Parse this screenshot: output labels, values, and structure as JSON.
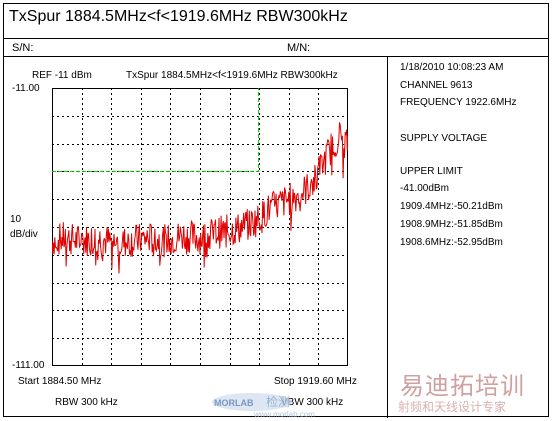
{
  "title": "TxSpur  1884.5MHz<f<1919.6MHz  RBW300kHz",
  "fields": {
    "sn_label": "S/N:",
    "mn_label": "M/N:"
  },
  "graph": {
    "ref_text": "REF  -11  dBm",
    "span_text": "TxSpur  1884.5MHz<f<1919.6MHz  RBW300kHz",
    "y_top_label": "-11.00",
    "y_scale_label_1": "10",
    "y_scale_label_2": "dB/div",
    "y_bottom_label": "-111.00",
    "start_label": "Start  1884.50 MHz",
    "stop_label": "Stop  1919.60 MHz",
    "rbw_label": "RBW  300 kHz",
    "vbw_label": "VBW  300 kHz"
  },
  "info": {
    "datetime": "1/18/2010  10:08:23 AM",
    "channel": "CHANNEL    9613",
    "frequency": "FREQUENCY 1922.6MHz",
    "supply": "SUPPLY VOLTAGE",
    "upper_limit_label": "UPPER LIMIT",
    "upper_limit_value": " -41.00dBm",
    "readings": [
      "1909.4MHz:-50.21dBm",
      "1908.9MHz:-51.85dBm",
      "1908.6MHz:-52.95dBm"
    ]
  },
  "watermark": {
    "line1": "易迪拓培训",
    "line2": "射频和天线设计专家",
    "morlab": "MORLAB",
    "morlab_url": "www.morlab.com"
  },
  "colors": {
    "trace": "#e00000",
    "limit": "#00c000",
    "grid": "#000000"
  },
  "chart_data": {
    "type": "line",
    "x_start_mhz": 1884.5,
    "x_stop_mhz": 1919.6,
    "ylim": [
      -111,
      -11
    ],
    "y_per_div_db": 10,
    "grid": true,
    "limit_line": {
      "level_dbm": -41,
      "break_mhz": 1909.0
    },
    "series": [
      {
        "x": [
          1884.5,
          1886.0,
          1888.0,
          1890.0,
          1892.0,
          1894.0,
          1896.0,
          1898.0,
          1900.0,
          1902.0,
          1904.0,
          1906.0,
          1908.0,
          1909.5,
          1910.0,
          1912.0,
          1914.0,
          1915.5,
          1916.5,
          1917.5,
          1918.5,
          1919.6
        ],
        "y": [
          -66,
          -65,
          -66,
          -65,
          -67,
          -66,
          -65,
          -66,
          -64,
          -65,
          -63,
          -62,
          -60,
          -57,
          -55,
          -52,
          -49,
          -45,
          -39,
          -33,
          -28,
          -31
        ]
      }
    ]
  }
}
